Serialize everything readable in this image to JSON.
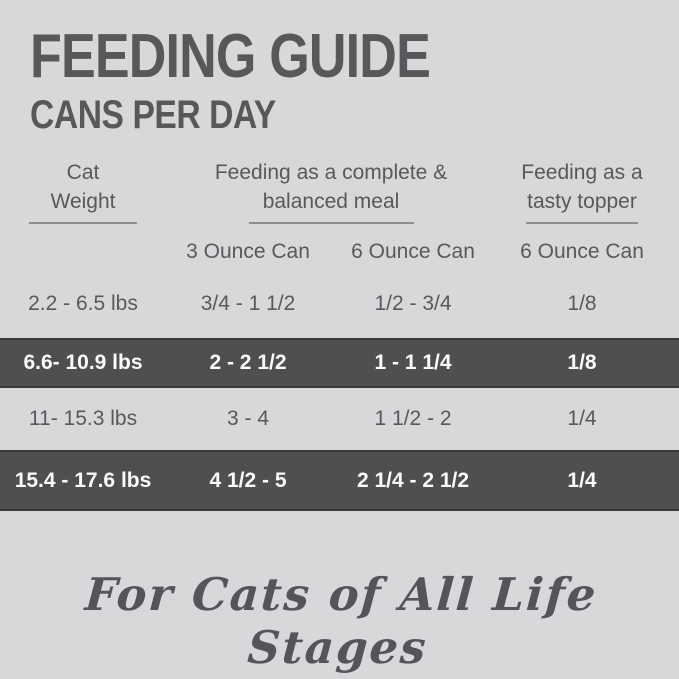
{
  "title": "FEEDING GUIDE",
  "subtitle": "CANS PER DAY",
  "header": {
    "groups": [
      {
        "line1": "Cat",
        "line2": "Weight"
      },
      {
        "line1": "Feeding as a complete &",
        "line2": "balanced meal"
      },
      {
        "line1": "Feeding as a",
        "line2": "tasty topper"
      }
    ],
    "sub_columns": [
      "3 Ounce Can",
      "6 Ounce Can",
      "6 Ounce Can"
    ]
  },
  "chart_data": {
    "type": "table",
    "title": "FEEDING GUIDE — CANS PER DAY",
    "column_groups": [
      "Cat Weight",
      "Feeding as a complete & balanced meal",
      "Feeding as a tasty topper"
    ],
    "columns": [
      "Cat Weight",
      "3 Ounce Can (complete & balanced meal)",
      "6 Ounce Can (complete & balanced meal)",
      "6 Ounce Can (tasty topper)"
    ],
    "rows": [
      [
        "2.2 - 6.5 lbs",
        "3/4 - 1 1/2",
        "1/2 - 3/4",
        "1/8"
      ],
      [
        "6.6- 10.9 lbs",
        "2 - 2 1/2",
        "1 - 1 1/4",
        "1/8"
      ],
      [
        "11- 15.3 lbs",
        "3 - 4",
        "1 1/2 - 2",
        "1/4"
      ],
      [
        "15.4 - 17.6 lbs",
        "4 1/2 - 5",
        "2 1/4 - 2 1/2",
        "1/4"
      ]
    ],
    "highlighted_rows": [
      1,
      3
    ],
    "legend_position": "none",
    "grid": false
  },
  "tagline": "For Cats of All Life Stages",
  "colors": {
    "background": "#d7d8da",
    "text": "#58595b",
    "highlight_row_bg": "#4f4f4f",
    "highlight_row_border": "#3a3a3a",
    "highlight_row_text": "#fbfbfb",
    "underline": "#8d8e90"
  }
}
